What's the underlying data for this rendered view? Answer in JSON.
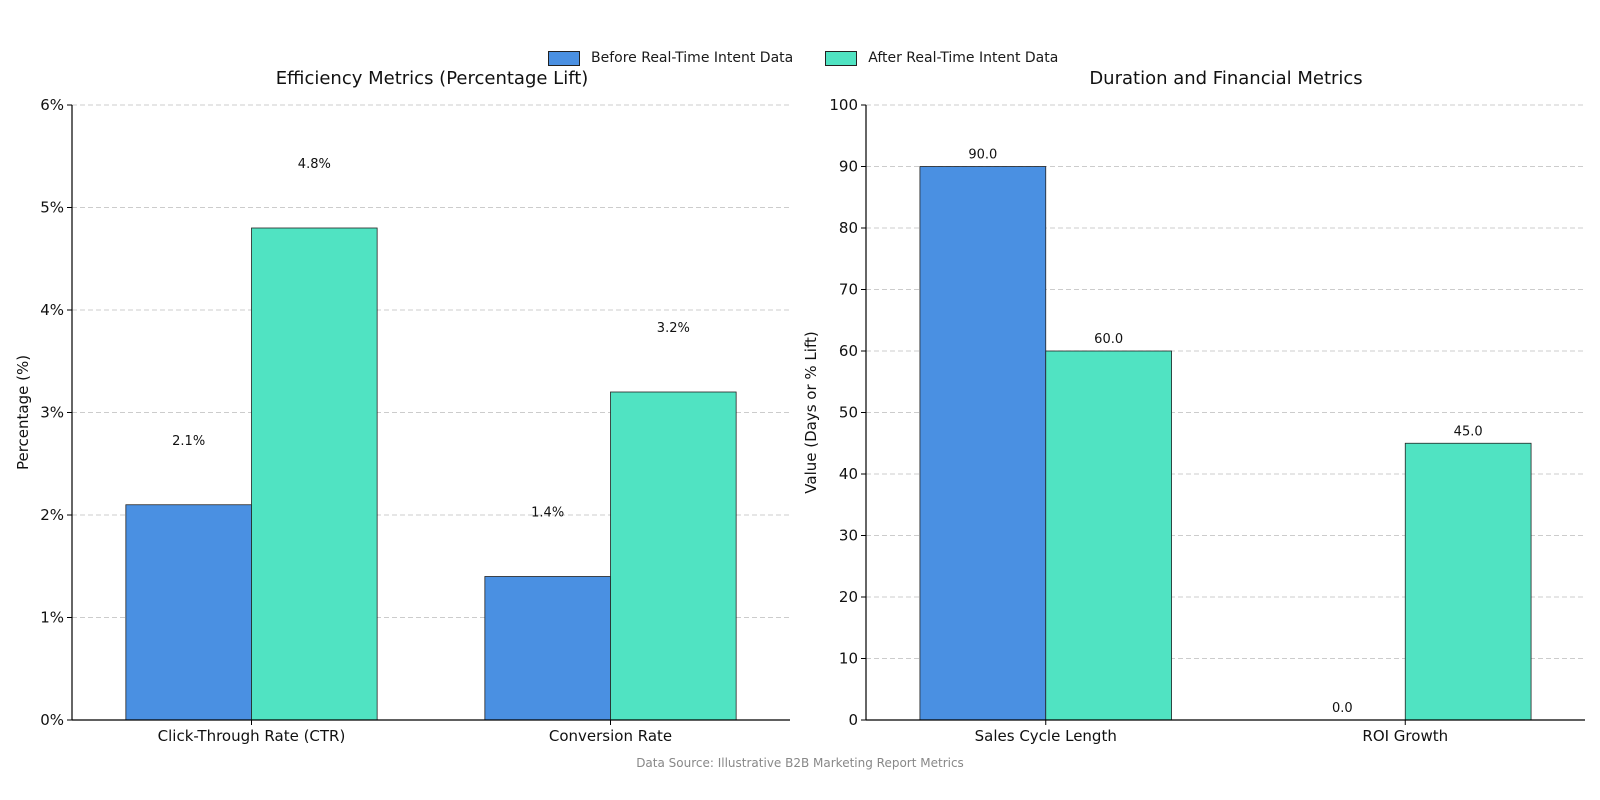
{
  "legend": [
    {
      "label": "Before Real-Time Intent Data",
      "color": "#4a90e2"
    },
    {
      "label": "After Real-Time Intent Data",
      "color": "#50e3c2"
    }
  ],
  "source_note": "Data Source: Illustrative B2B Marketing Report Metrics",
  "chart_data": [
    {
      "type": "bar",
      "title": "Efficiency Metrics (Percentage Lift)",
      "xlabel": "",
      "ylabel": "Percentage (%)",
      "ylim": [
        0,
        6
      ],
      "y_ticks": [
        0,
        1,
        2,
        3,
        4,
        5,
        6
      ],
      "tick_suffix": "%",
      "label_suffix": "%",
      "label_decimals": 1,
      "label_offset": "far",
      "grid": true,
      "categories": [
        "Click-Through Rate (CTR)",
        "Conversion Rate"
      ],
      "series": [
        {
          "name": "Before Real-Time Intent Data",
          "values": [
            2.1,
            1.4
          ]
        },
        {
          "name": "After Real-Time Intent Data",
          "values": [
            4.8,
            3.2
          ]
        }
      ]
    },
    {
      "type": "bar",
      "title": "Duration and Financial Metrics",
      "xlabel": "",
      "ylabel": "Value (Days or % Lift)",
      "ylim": [
        0,
        100
      ],
      "y_ticks": [
        0,
        10,
        20,
        30,
        40,
        50,
        60,
        70,
        80,
        90,
        100
      ],
      "tick_suffix": "",
      "label_suffix": "",
      "label_decimals": 1,
      "label_offset": "near",
      "grid": true,
      "categories": [
        "Sales Cycle Length",
        "ROI Growth"
      ],
      "series": [
        {
          "name": "Before Real-Time Intent Data",
          "values": [
            90.0,
            0.0
          ]
        },
        {
          "name": "After Real-Time Intent Data",
          "values": [
            60.0,
            45.0
          ]
        }
      ]
    }
  ]
}
